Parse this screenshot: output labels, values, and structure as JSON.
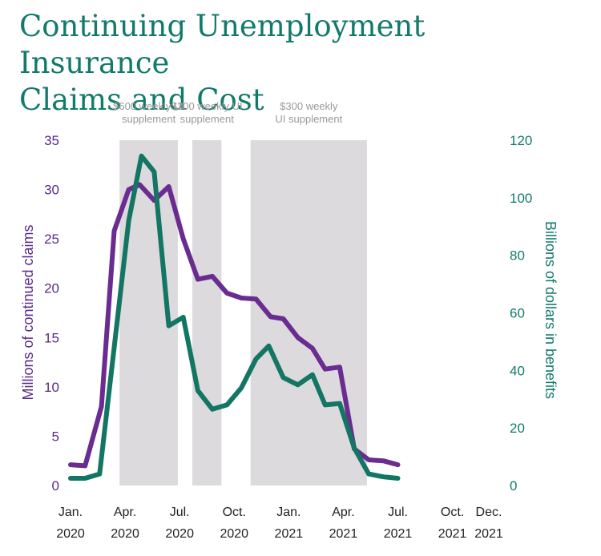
{
  "chart_data": {
    "type": "line",
    "title_lines": [
      "Continuing Unemployment Insurance",
      "Claims and Cost"
    ],
    "ylabel": "Millions of continued claims",
    "y2label": "Billions of dollars in benefits",
    "ylim": [
      0,
      35
    ],
    "y2lim": [
      0,
      120
    ],
    "yticks": [
      "0",
      "5",
      "10",
      "15",
      "20",
      "25",
      "30",
      "35"
    ],
    "y2ticks": [
      "0",
      "20",
      "40",
      "60",
      "80",
      "100",
      "120"
    ],
    "x_ticks": [
      {
        "line1": "Jan.",
        "line2": "2020",
        "month": 0
      },
      {
        "line1": "Apr.",
        "line2": "2020",
        "month": 3
      },
      {
        "line1": "Jul.",
        "line2": "2020",
        "month": 6
      },
      {
        "line1": "Oct.",
        "line2": "2020",
        "month": 9
      },
      {
        "line1": "Jan.",
        "line2": "2021",
        "month": 12
      },
      {
        "line1": "Apr.",
        "line2": "2021",
        "month": 15
      },
      {
        "line1": "Jul.",
        "line2": "2021",
        "month": 18
      },
      {
        "line1": "Oct.",
        "line2": "2021",
        "month": 21
      },
      {
        "line1": "Dec.",
        "line2": "2021",
        "month": 23
      }
    ],
    "bands": [
      {
        "start": 2.7,
        "end": 5.9,
        "label_lines": [
          "$600 weekly UI",
          "supplement"
        ]
      },
      {
        "start": 6.7,
        "end": 8.3,
        "label_lines": [
          "$300 weekly UI",
          "supplement"
        ]
      },
      {
        "start": 9.9,
        "end": 16.3,
        "label_lines": [
          "$300 weekly",
          "UI supplement"
        ]
      }
    ],
    "series": [
      {
        "name": "Millions of continued claims",
        "axis": "left",
        "color": "#6a2c91",
        "points": [
          [
            0,
            2.1
          ],
          [
            0.8,
            2.0
          ],
          [
            1.7,
            8.0
          ],
          [
            2.4,
            25.8
          ],
          [
            3.2,
            30.0
          ],
          [
            3.8,
            30.5
          ],
          [
            4.6,
            28.9
          ],
          [
            5.4,
            30.3
          ],
          [
            6.2,
            25.0
          ],
          [
            7.0,
            20.9
          ],
          [
            7.8,
            21.2
          ],
          [
            8.6,
            19.5
          ],
          [
            9.4,
            19.0
          ],
          [
            10.2,
            18.9
          ],
          [
            11.0,
            17.1
          ],
          [
            11.7,
            16.9
          ],
          [
            12.5,
            15.0
          ],
          [
            13.3,
            13.9
          ],
          [
            14.0,
            11.8
          ],
          [
            14.8,
            12.0
          ],
          [
            15.6,
            3.7
          ],
          [
            16.4,
            2.6
          ],
          [
            17.2,
            2.5
          ],
          [
            18.0,
            2.1
          ]
        ]
      },
      {
        "name": "Billions of dollars in benefits",
        "axis": "right",
        "color": "#137563",
        "points": [
          [
            0,
            2.5
          ],
          [
            0.8,
            2.5
          ],
          [
            1.6,
            4.0
          ],
          [
            2.4,
            48.0
          ],
          [
            3.2,
            92.0
          ],
          [
            3.9,
            114.5
          ],
          [
            4.6,
            109.0
          ],
          [
            5.4,
            55.5
          ],
          [
            6.2,
            58.5
          ],
          [
            7.0,
            33.0
          ],
          [
            7.8,
            26.5
          ],
          [
            8.6,
            28.0
          ],
          [
            9.4,
            34.0
          ],
          [
            10.2,
            44.0
          ],
          [
            10.9,
            48.5
          ],
          [
            11.7,
            37.5
          ],
          [
            12.5,
            35.0
          ],
          [
            13.3,
            38.5
          ],
          [
            14.0,
            28.0
          ],
          [
            14.8,
            28.5
          ],
          [
            15.6,
            13.0
          ],
          [
            16.4,
            4.0
          ],
          [
            17.2,
            3.0
          ],
          [
            18.0,
            2.5
          ]
        ]
      }
    ],
    "grid": false,
    "legend": "none"
  }
}
